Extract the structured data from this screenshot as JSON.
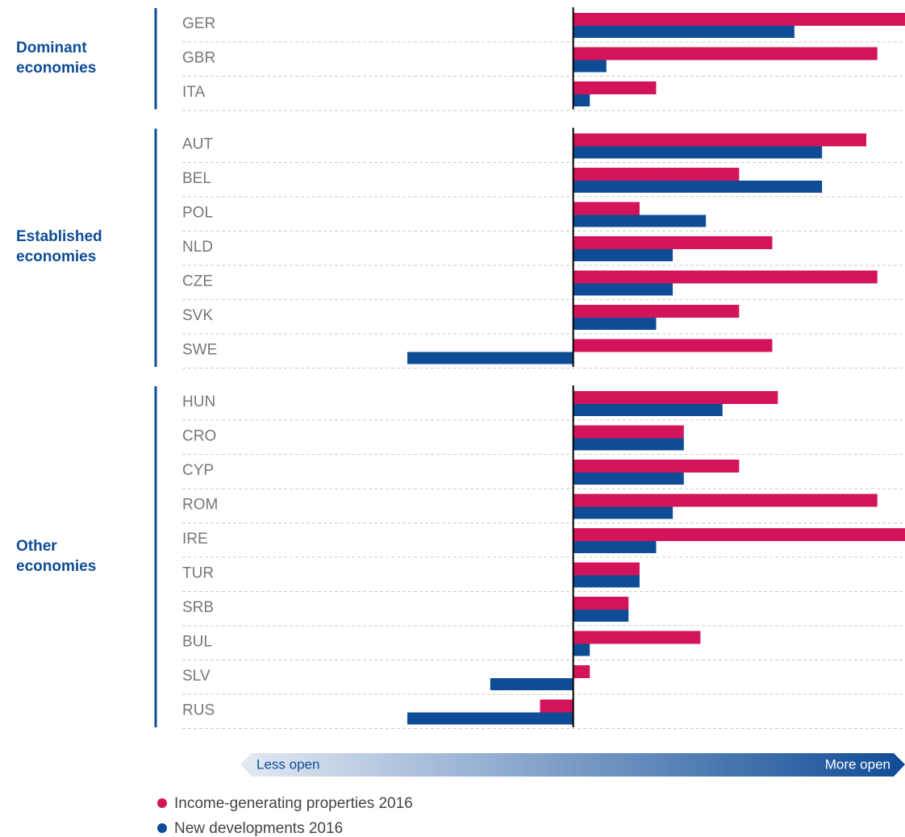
{
  "chart_data": {
    "type": "bar",
    "orientation": "horizontal",
    "groups": [
      {
        "name": "Dominant economies",
        "categories": [
          "GER",
          "GBR",
          "ITA"
        ]
      },
      {
        "name": "Established economies",
        "categories": [
          "AUT",
          "BEL",
          "POL",
          "NLD",
          "CZE",
          "SVK",
          "SWE"
        ]
      },
      {
        "name": "Other economies",
        "categories": [
          "HUN",
          "CRO",
          "CYP",
          "ROM",
          "IRE",
          "TUR",
          "SRB",
          "BUL",
          "SLV",
          "RUS"
        ]
      }
    ],
    "series": [
      {
        "name": "Income-generating properties 2016",
        "color": "#d4145a",
        "values": [
          6.0,
          5.5,
          1.5,
          5.3,
          3.0,
          1.2,
          3.6,
          5.5,
          3.0,
          3.6,
          3.7,
          2.0,
          3.0,
          5.5,
          6.0,
          1.2,
          1.0,
          2.3,
          0.3,
          -0.6
        ]
      },
      {
        "name": "New developments 2016",
        "color": "#0f4c96",
        "values": [
          4.0,
          0.6,
          0.3,
          4.5,
          4.5,
          2.4,
          1.8,
          1.8,
          1.5,
          -3.0,
          2.7,
          2.0,
          2.0,
          1.8,
          1.5,
          1.2,
          1.0,
          0.3,
          -1.5,
          -3.0
        ]
      }
    ],
    "xlim": [
      -3,
      6
    ],
    "scale_labels": [
      "Less open",
      "More open"
    ]
  }
}
